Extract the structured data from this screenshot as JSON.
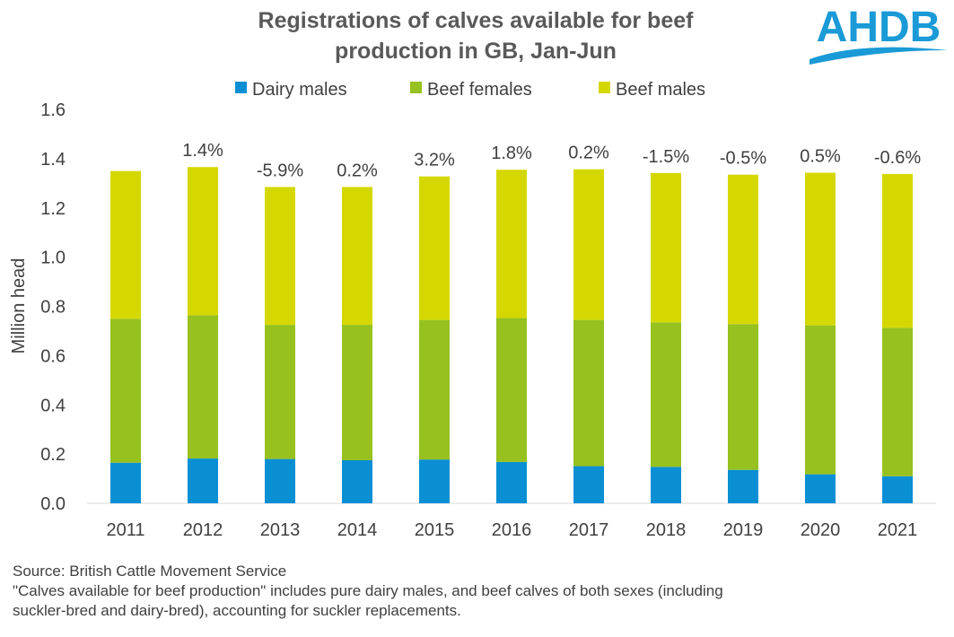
{
  "chart_data": {
    "type": "bar",
    "stacked": true,
    "title_lines": [
      "Registrations of calves available for beef",
      "production in GB, Jan-Jun"
    ],
    "xlabel": "",
    "ylabel": "Million head",
    "ylim": [
      0,
      1.6
    ],
    "yticks": [
      "0.0",
      "0.2",
      "0.4",
      "0.6",
      "0.8",
      "1.0",
      "1.2",
      "1.4",
      "1.6"
    ],
    "grid": false,
    "legend_position": "top",
    "categories": [
      "2011",
      "2012",
      "2013",
      "2014",
      "2015",
      "2016",
      "2017",
      "2018",
      "2019",
      "2020",
      "2021"
    ],
    "series": [
      {
        "name": "Dairy males",
        "color": "#0a8fd4",
        "values": [
          0.165,
          0.182,
          0.18,
          0.175,
          0.178,
          0.168,
          0.151,
          0.148,
          0.136,
          0.118,
          0.11
        ]
      },
      {
        "name": "Beef females",
        "color": "#96c11f",
        "values": [
          0.585,
          0.582,
          0.545,
          0.55,
          0.567,
          0.585,
          0.594,
          0.587,
          0.592,
          0.605,
          0.603
        ]
      },
      {
        "name": "Beef males",
        "color": "#d5d800",
        "values": [
          0.6,
          0.602,
          0.56,
          0.56,
          0.583,
          0.602,
          0.612,
          0.607,
          0.607,
          0.62,
          0.625
        ]
      }
    ],
    "annotations": [
      "",
      "1.4%",
      "-5.9%",
      "0.2%",
      "3.2%",
      "1.8%",
      "0.2%",
      "-1.5%",
      "-0.5%",
      "0.5%",
      "-0.6%"
    ]
  },
  "logo": {
    "text": "AHDB",
    "color": "#1a9ad6"
  },
  "footer": {
    "source": "Source: British Cattle Movement Service",
    "note_line1": "\"Calves available for beef production\" includes pure dairy males, and beef calves of both sexes (including",
    "note_line2": "suckler-bred and dairy-bred), accounting for suckler replacements."
  }
}
